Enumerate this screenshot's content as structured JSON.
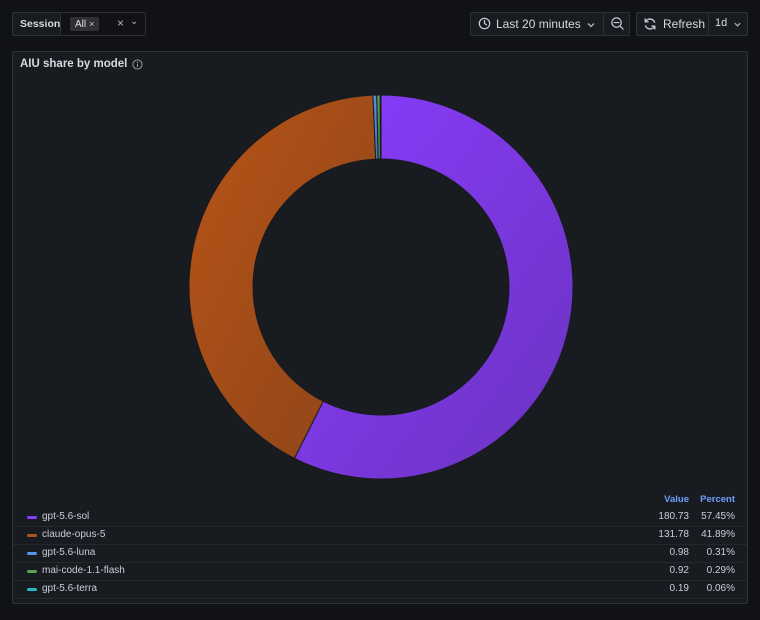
{
  "variable": {
    "label": "Session",
    "chip": "All",
    "chip_remove": "×",
    "clear": "×",
    "dropdown": "⌄"
  },
  "time_picker": {
    "label": "Last 20 minutes",
    "icon": "clock-icon",
    "zoom_icon": "zoom-out-icon"
  },
  "refresh": {
    "label": "Refresh",
    "interval": "1d",
    "icon": "refresh-icon"
  },
  "panel": {
    "title": "AIU share by model",
    "info_icon": "info-icon"
  },
  "chart_data": {
    "type": "pie",
    "style": "donut",
    "title": "AIU share by model",
    "legend_position": "bottom",
    "legend_columns": [
      "Value",
      "Percent"
    ],
    "series": [
      {
        "name": "gpt-5.6-sol",
        "value": 180.73,
        "percent": "57.45%",
        "color": "#8b3cff"
      },
      {
        "name": "claude-opus-5",
        "value": 131.78,
        "percent": "41.89%",
        "color": "#b85417"
      },
      {
        "name": "gpt-5.6-luna",
        "value": 0.98,
        "percent": "0.31%",
        "color": "#5794f2"
      },
      {
        "name": "mai-code-1.1-flash",
        "value": 0.92,
        "percent": "0.29%",
        "color": "#56a64b"
      },
      {
        "name": "gpt-5.6-terra",
        "value": 0.19,
        "percent": "0.06%",
        "color": "#29b8c4"
      }
    ]
  }
}
